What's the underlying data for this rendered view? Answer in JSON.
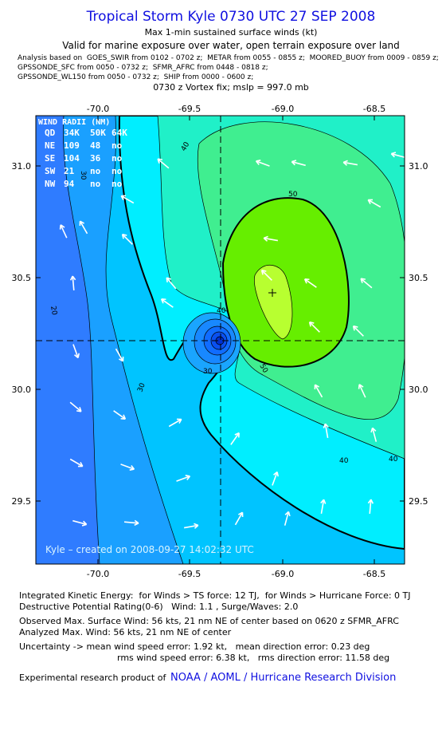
{
  "header": {
    "title": "Tropical Storm Kyle 0730 UTC 27 SEP 2008",
    "subtitle": "Max 1-min sustained surface winds (kt)",
    "validity": "Valid for marine exposure over water, open terrain exposure over land",
    "analysis_lines": [
      "Analysis based on  GOES_SWIR from 0102 - 0702 z;  METAR from 0055 - 0855 z;  MOORED_BUOY from 0009 - 0859 z;",
      "GPSSONDE_SFC from 0050 - 0732 z;  SFMR_AFRC from 0448 - 0818 z;",
      "GPSSONDE_WL150 from 0050 - 0732 z;  SHIP from 0000 - 0600 z;"
    ],
    "vortex_fix": "0730 z Vortex fix; mslp = 997.0 mb"
  },
  "map": {
    "x_ticks": [
      "-70.0",
      "-69.5",
      "-69.0",
      "-68.5"
    ],
    "y_ticks": [
      "31.0",
      "30.5",
      "30.0",
      "29.5"
    ],
    "contour_labels": [
      "40",
      "40",
      "50",
      "50",
      "30",
      "30",
      "20",
      "40",
      "40",
      "30"
    ],
    "wind_radii": {
      "title": "WIND RADII (NM)",
      "header": [
        "QD",
        "34K",
        "50K",
        "64K"
      ],
      "rows": [
        [
          "NE",
          "109",
          "48",
          "no"
        ],
        [
          "SE",
          "104",
          "36",
          "no"
        ],
        [
          "SW",
          "21",
          "no",
          "no"
        ],
        [
          "NW",
          "94",
          "no",
          "no"
        ]
      ]
    },
    "credit": "Kyle – created on 2008-09-27 14:02:32 UTC"
  },
  "footer": {
    "lines": [
      "Integrated Kinetic Energy:  for Winds > TS force: 12 TJ,  for Winds > Hurricane Force: 0 TJ",
      "Destructive Potential Rating(0-6)   Wind: 1.1 , Surge/Waves: 2.0",
      "Observed Max. Surface Wind: 56 kts, 21 nm NE of center based on 0620 z SFMR_AFRC",
      "Analyzed Max. Wind: 56 kts, 21 nm NE of center",
      "Uncertainty -> mean wind speed error: 1.92 kt,   mean direction error: 0.23 deg",
      "rms wind speed error: 6.38 kt,   rms direction error: 11.58 deg"
    ],
    "research_prefix": "Experimental research product of",
    "research_link": "NOAA / AOML / Hurricane Research Division"
  }
}
